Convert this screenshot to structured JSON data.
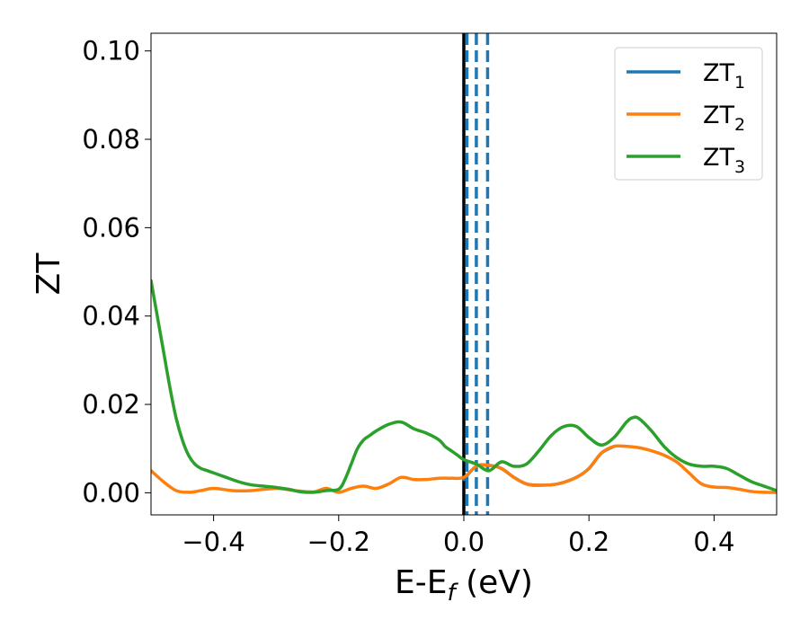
{
  "chart_data": {
    "type": "line",
    "xlabel": {
      "base": "E-E",
      "sub": "f",
      "suffix": " (eV)"
    },
    "ylabel": "ZT",
    "xlim": [
      -0.5,
      0.5
    ],
    "ylim": [
      -0.005,
      0.104
    ],
    "x_ticks": [
      -0.4,
      -0.2,
      0.0,
      0.2,
      0.4
    ],
    "x_tick_labels": [
      "−0.4",
      "−0.2",
      "0.0",
      "0.2",
      "0.4"
    ],
    "y_ticks": [
      0.0,
      0.02,
      0.04,
      0.06,
      0.08,
      0.1
    ],
    "y_tick_labels": [
      "0.00",
      "0.02",
      "0.04",
      "0.06",
      "0.08",
      "0.10"
    ],
    "grid": false,
    "legend_position": "top-right",
    "vertical_lines": [
      {
        "x": 0.0,
        "color": "#000000",
        "style": "solid"
      },
      {
        "x": 0.005,
        "color": "#1f77b4",
        "style": "dashed"
      },
      {
        "x": 0.02,
        "color": "#1f77b4",
        "style": "dashed"
      },
      {
        "x": 0.038,
        "color": "#1f77b4",
        "style": "dashed"
      }
    ],
    "series": [
      {
        "name": "ZT",
        "sub": "1",
        "color": "#1f77b4",
        "x": [
          0.0,
          0.02,
          0.04,
          0.06,
          0.08,
          0.1,
          0.12,
          0.15,
          0.18,
          0.2,
          0.22,
          0.24
        ],
        "y": [
          0.003,
          0.006,
          0.0062,
          0.0055,
          0.0035,
          0.002,
          0.0017,
          0.002,
          0.0035,
          0.0055,
          0.009,
          0.0105
        ]
      },
      {
        "name": "ZT",
        "sub": "2",
        "color": "#ff7f0e",
        "x": [
          -0.5,
          -0.48,
          -0.46,
          -0.44,
          -0.42,
          -0.4,
          -0.37,
          -0.34,
          -0.3,
          -0.27,
          -0.24,
          -0.22,
          -0.2,
          -0.18,
          -0.16,
          -0.14,
          -0.12,
          -0.1,
          -0.08,
          -0.06,
          -0.04,
          -0.02,
          0.0,
          0.02,
          0.04,
          0.06,
          0.08,
          0.1,
          0.12,
          0.15,
          0.18,
          0.2,
          0.22,
          0.24,
          0.26,
          0.28,
          0.3,
          0.32,
          0.34,
          0.36,
          0.38,
          0.4,
          0.42,
          0.44,
          0.46,
          0.48,
          0.5
        ],
        "y": [
          0.005,
          0.0025,
          0.0005,
          0.0001,
          0.0005,
          0.001,
          0.0005,
          0.0005,
          0.001,
          0.0005,
          0.0002,
          0.001,
          0.0001,
          0.001,
          0.0015,
          0.001,
          0.002,
          0.0035,
          0.003,
          0.003,
          0.0033,
          0.0033,
          0.0035,
          0.006,
          0.0062,
          0.0055,
          0.0035,
          0.002,
          0.0017,
          0.002,
          0.0035,
          0.0055,
          0.009,
          0.0105,
          0.0105,
          0.0102,
          0.0095,
          0.0085,
          0.007,
          0.0045,
          0.002,
          0.0013,
          0.0012,
          0.0008,
          0.0003,
          0.0001,
          0.0001
        ]
      },
      {
        "name": "ZT",
        "sub": "3",
        "color": "#2ca02c",
        "x": [
          -0.5,
          -0.49,
          -0.48,
          -0.47,
          -0.46,
          -0.45,
          -0.44,
          -0.43,
          -0.42,
          -0.41,
          -0.4,
          -0.38,
          -0.36,
          -0.34,
          -0.32,
          -0.3,
          -0.28,
          -0.26,
          -0.24,
          -0.22,
          -0.2,
          -0.19,
          -0.18,
          -0.17,
          -0.16,
          -0.15,
          -0.14,
          -0.12,
          -0.1,
          -0.08,
          -0.06,
          -0.04,
          -0.03,
          -0.02,
          -0.01,
          0.0,
          0.02,
          0.04,
          0.06,
          0.08,
          0.1,
          0.12,
          0.14,
          0.16,
          0.18,
          0.2,
          0.22,
          0.24,
          0.26,
          0.27,
          0.28,
          0.3,
          0.32,
          0.34,
          0.36,
          0.38,
          0.4,
          0.42,
          0.44,
          0.46,
          0.48,
          0.5
        ],
        "y": [
          0.048,
          0.04,
          0.032,
          0.024,
          0.017,
          0.012,
          0.0085,
          0.0065,
          0.0055,
          0.005,
          0.0045,
          0.0035,
          0.0025,
          0.0018,
          0.0015,
          0.0012,
          0.0008,
          0.0002,
          0.0001,
          0.0005,
          0.0008,
          0.003,
          0.0065,
          0.01,
          0.012,
          0.013,
          0.014,
          0.0155,
          0.016,
          0.0145,
          0.0135,
          0.012,
          0.0105,
          0.0095,
          0.0085,
          0.0075,
          0.0065,
          0.005,
          0.007,
          0.006,
          0.0065,
          0.0095,
          0.013,
          0.015,
          0.015,
          0.0125,
          0.0108,
          0.0125,
          0.016,
          0.017,
          0.0168,
          0.014,
          0.0105,
          0.008,
          0.0065,
          0.006,
          0.006,
          0.0055,
          0.004,
          0.0025,
          0.0015,
          0.0005
        ]
      }
    ]
  }
}
